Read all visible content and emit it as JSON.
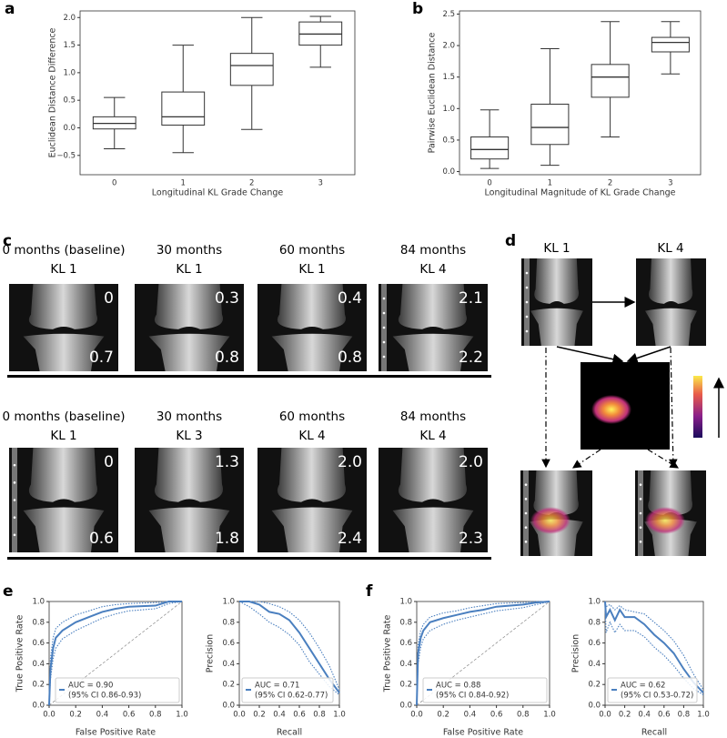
{
  "panel_labels": [
    "a",
    "b",
    "c",
    "d",
    "e",
    "f"
  ],
  "chart_data": [
    {
      "type": "box",
      "xlabel": "Longitudinal KL Grade Change",
      "ylabel": "Euclidean Distance Difference",
      "categories": [
        "0",
        "1",
        "2",
        "3"
      ],
      "boxes": [
        {
          "whislo": -0.38,
          "q1": -0.02,
          "med": 0.08,
          "q3": 0.2,
          "whishi": 0.55
        },
        {
          "whislo": -0.45,
          "q1": 0.05,
          "med": 0.2,
          "q3": 0.65,
          "whishi": 1.5
        },
        {
          "whislo": -0.03,
          "q1": 0.77,
          "med": 1.13,
          "q3": 1.35,
          "whishi": 2.0
        },
        {
          "whislo": 1.1,
          "q1": 1.5,
          "med": 1.7,
          "q3": 1.92,
          "whishi": 2.02
        }
      ],
      "ylim": [
        -0.85,
        2.12
      ],
      "yticks": [
        {
          "value": -0.5,
          "label": "−0.5"
        },
        {
          "value": 0,
          "label": "0.0"
        },
        {
          "value": 0.5,
          "label": "0.5"
        },
        {
          "value": 1,
          "label": "1.0"
        },
        {
          "value": 1.5,
          "label": "1.5"
        },
        {
          "value": 2,
          "label": "2.0"
        }
      ],
      "color": "#333333"
    },
    {
      "type": "box",
      "xlabel": "Longitudinal Magnitude of KL Grade Change",
      "ylabel": "Pairwise Euclidean Distance",
      "categories": [
        "0",
        "1",
        "2",
        "3"
      ],
      "boxes": [
        {
          "whislo": 0.05,
          "q1": 0.2,
          "med": 0.35,
          "q3": 0.55,
          "whishi": 0.98
        },
        {
          "whislo": 0.1,
          "q1": 0.43,
          "med": 0.7,
          "q3": 1.07,
          "whishi": 1.95
        },
        {
          "whislo": 0.55,
          "q1": 1.18,
          "med": 1.5,
          "q3": 1.7,
          "whishi": 2.38
        },
        {
          "whislo": 1.55,
          "q1": 1.9,
          "med": 2.05,
          "q3": 2.13,
          "whishi": 2.38
        }
      ],
      "ylim": [
        -0.05,
        2.55
      ],
      "yticks": [
        {
          "value": 0,
          "label": "0.0"
        },
        {
          "value": 0.5,
          "label": "0.5"
        },
        {
          "value": 1,
          "label": "1.0"
        },
        {
          "value": 1.5,
          "label": "1.5"
        },
        {
          "value": 2,
          "label": "2.0"
        },
        {
          "value": 2.5,
          "label": "2.5"
        }
      ],
      "color": "#333333"
    },
    {
      "type": "line",
      "xlabel": "False Positive Rate",
      "ylabel": "True Positive Rate",
      "diagonal": true,
      "legend": "lower right",
      "legend_text": [
        "AUC = 0.90",
        "(95% CI 0.86-0.93)"
      ],
      "xlim": [
        0,
        1
      ],
      "ylim": [
        0,
        1
      ],
      "xticks": [
        {
          "value": 0,
          "label": "0.0"
        },
        {
          "value": 0.2,
          "label": "0.2"
        },
        {
          "value": 0.4,
          "label": "0.4"
        },
        {
          "value": 0.6,
          "label": "0.6"
        },
        {
          "value": 0.8,
          "label": "0.8"
        },
        {
          "value": 1,
          "label": "1.0"
        }
      ],
      "yticks": [
        {
          "value": 0,
          "label": "0.0"
        },
        {
          "value": 0.2,
          "label": "0.2"
        },
        {
          "value": 0.4,
          "label": "0.4"
        },
        {
          "value": 0.6,
          "label": "0.6"
        },
        {
          "value": 0.8,
          "label": "0.8"
        },
        {
          "value": 1,
          "label": "1.0"
        }
      ],
      "series": [
        {
          "color": "#4a7fbf",
          "style": "solid",
          "x": [
            0,
            0.01,
            0.03,
            0.05,
            0.1,
            0.2,
            0.3,
            0.4,
            0.5,
            0.6,
            0.8,
            0.9,
            1
          ],
          "values": [
            0,
            0.35,
            0.55,
            0.65,
            0.72,
            0.8,
            0.85,
            0.9,
            0.93,
            0.95,
            0.96,
            1,
            1
          ]
        },
        {
          "color": "#4a7fbf",
          "style": "dotted",
          "x": [
            0,
            0.01,
            0.03,
            0.05,
            0.1,
            0.2,
            0.3,
            0.4,
            0.5,
            0.6,
            0.8,
            0.9,
            1
          ],
          "values": [
            0,
            0.45,
            0.65,
            0.74,
            0.8,
            0.87,
            0.91,
            0.95,
            0.97,
            0.98,
            0.99,
            1,
            1
          ]
        },
        {
          "color": "#4a7fbf",
          "style": "dotted",
          "x": [
            0,
            0.01,
            0.03,
            0.05,
            0.1,
            0.2,
            0.3,
            0.4,
            0.5,
            0.6,
            0.8,
            0.9,
            1
          ],
          "values": [
            0,
            0.25,
            0.45,
            0.55,
            0.64,
            0.72,
            0.78,
            0.84,
            0.88,
            0.91,
            0.93,
            0.98,
            1
          ]
        }
      ]
    },
    {
      "type": "line",
      "xlabel": "Recall",
      "ylabel": "Precision",
      "diagonal": false,
      "legend": "lower left",
      "legend_text": [
        "AUC = 0.71",
        "(95% CI 0.62-0.77)"
      ],
      "xlim": [
        0,
        1
      ],
      "ylim": [
        0,
        1
      ],
      "xticks": [
        {
          "value": 0,
          "label": "0.0"
        },
        {
          "value": 0.2,
          "label": "0.2"
        },
        {
          "value": 0.4,
          "label": "0.4"
        },
        {
          "value": 0.6,
          "label": "0.6"
        },
        {
          "value": 0.8,
          "label": "0.8"
        },
        {
          "value": 1,
          "label": "1.0"
        }
      ],
      "yticks": [
        {
          "value": 0,
          "label": "0.0"
        },
        {
          "value": 0.2,
          "label": "0.2"
        },
        {
          "value": 0.4,
          "label": "0.4"
        },
        {
          "value": 0.6,
          "label": "0.6"
        },
        {
          "value": 0.8,
          "label": "0.8"
        },
        {
          "value": 1,
          "label": "1.0"
        }
      ],
      "series": [
        {
          "color": "#4a7fbf",
          "style": "solid",
          "x": [
            0,
            0.1,
            0.2,
            0.3,
            0.4,
            0.5,
            0.6,
            0.7,
            0.8,
            0.9,
            1
          ],
          "values": [
            1,
            1,
            0.97,
            0.9,
            0.88,
            0.82,
            0.7,
            0.55,
            0.4,
            0.25,
            0.12
          ]
        },
        {
          "color": "#4a7fbf",
          "style": "dotted",
          "x": [
            0,
            0.1,
            0.2,
            0.3,
            0.4,
            0.5,
            0.6,
            0.7,
            0.8,
            0.9,
            1
          ],
          "values": [
            1,
            1,
            1,
            0.98,
            0.95,
            0.9,
            0.82,
            0.7,
            0.55,
            0.38,
            0.15
          ]
        },
        {
          "color": "#4a7fbf",
          "style": "dotted",
          "x": [
            0,
            0.1,
            0.2,
            0.3,
            0.4,
            0.5,
            0.6,
            0.7,
            0.8,
            0.9,
            1
          ],
          "values": [
            1,
            0.95,
            0.88,
            0.8,
            0.75,
            0.68,
            0.58,
            0.42,
            0.3,
            0.18,
            0.1
          ]
        }
      ]
    },
    {
      "type": "line",
      "xlabel": "False Positive Rate",
      "ylabel": "True Positive Rate",
      "diagonal": true,
      "legend": "lower right",
      "legend_text": [
        "AUC = 0.88",
        "(95% CI 0.84-0.92)"
      ],
      "xlim": [
        0,
        1
      ],
      "ylim": [
        0,
        1
      ],
      "xticks": [
        {
          "value": 0,
          "label": "0.0"
        },
        {
          "value": 0.2,
          "label": "0.2"
        },
        {
          "value": 0.4,
          "label": "0.4"
        },
        {
          "value": 0.6,
          "label": "0.6"
        },
        {
          "value": 0.8,
          "label": "0.8"
        },
        {
          "value": 1,
          "label": "1.0"
        }
      ],
      "yticks": [
        {
          "value": 0,
          "label": "0.0"
        },
        {
          "value": 0.2,
          "label": "0.2"
        },
        {
          "value": 0.4,
          "label": "0.4"
        },
        {
          "value": 0.6,
          "label": "0.6"
        },
        {
          "value": 0.8,
          "label": "0.8"
        },
        {
          "value": 1,
          "label": "1.0"
        }
      ],
      "series": [
        {
          "color": "#4a7fbf",
          "style": "solid",
          "x": [
            0,
            0.01,
            0.03,
            0.05,
            0.1,
            0.2,
            0.3,
            0.4,
            0.5,
            0.6,
            0.8,
            0.9,
            1
          ],
          "values": [
            0,
            0.5,
            0.65,
            0.72,
            0.8,
            0.84,
            0.87,
            0.9,
            0.92,
            0.95,
            0.97,
            0.99,
            1
          ]
        },
        {
          "color": "#4a7fbf",
          "style": "dotted",
          "x": [
            0,
            0.01,
            0.03,
            0.05,
            0.1,
            0.2,
            0.3,
            0.4,
            0.5,
            0.6,
            0.8,
            0.9,
            1
          ],
          "values": [
            0,
            0.58,
            0.72,
            0.78,
            0.85,
            0.89,
            0.91,
            0.94,
            0.96,
            0.98,
            0.99,
            1,
            1
          ]
        },
        {
          "color": "#4a7fbf",
          "style": "dotted",
          "x": [
            0,
            0.01,
            0.03,
            0.05,
            0.1,
            0.2,
            0.3,
            0.4,
            0.5,
            0.6,
            0.8,
            0.9,
            1
          ],
          "values": [
            0,
            0.4,
            0.56,
            0.64,
            0.72,
            0.78,
            0.82,
            0.85,
            0.88,
            0.91,
            0.94,
            0.97,
            1
          ]
        }
      ]
    },
    {
      "type": "line",
      "xlabel": "Recall",
      "ylabel": "Precision",
      "diagonal": false,
      "legend": "lower left",
      "legend_text": [
        "AUC = 0.62",
        "(95% CI 0.53-0.72)"
      ],
      "xlim": [
        0,
        1
      ],
      "ylim": [
        0,
        1
      ],
      "xticks": [
        {
          "value": 0,
          "label": "0.0"
        },
        {
          "value": 0.2,
          "label": "0.2"
        },
        {
          "value": 0.4,
          "label": "0.4"
        },
        {
          "value": 0.6,
          "label": "0.6"
        },
        {
          "value": 0.8,
          "label": "0.8"
        },
        {
          "value": 1,
          "label": "1.0"
        }
      ],
      "yticks": [
        {
          "value": 0,
          "label": "0.0"
        },
        {
          "value": 0.2,
          "label": "0.2"
        },
        {
          "value": 0.4,
          "label": "0.4"
        },
        {
          "value": 0.6,
          "label": "0.6"
        },
        {
          "value": 0.8,
          "label": "0.8"
        },
        {
          "value": 1,
          "label": "1.0"
        }
      ],
      "series": [
        {
          "color": "#4a7fbf",
          "style": "solid",
          "x": [
            0,
            0.01,
            0.05,
            0.1,
            0.15,
            0.2,
            0.3,
            0.4,
            0.5,
            0.6,
            0.7,
            0.8,
            0.9,
            1
          ],
          "values": [
            1,
            0.85,
            0.92,
            0.82,
            0.92,
            0.85,
            0.85,
            0.78,
            0.68,
            0.6,
            0.5,
            0.35,
            0.22,
            0.12
          ]
        },
        {
          "color": "#4a7fbf",
          "style": "dotted",
          "x": [
            0,
            0.01,
            0.05,
            0.1,
            0.15,
            0.2,
            0.3,
            0.4,
            0.5,
            0.6,
            0.7,
            0.8,
            0.9,
            1
          ],
          "values": [
            1,
            0.95,
            0.97,
            0.92,
            0.96,
            0.92,
            0.9,
            0.88,
            0.8,
            0.72,
            0.62,
            0.48,
            0.3,
            0.15
          ]
        },
        {
          "color": "#4a7fbf",
          "style": "dotted",
          "x": [
            0,
            0.01,
            0.05,
            0.1,
            0.15,
            0.2,
            0.3,
            0.4,
            0.5,
            0.6,
            0.7,
            0.8,
            0.9,
            1
          ],
          "values": [
            1,
            0.7,
            0.8,
            0.7,
            0.78,
            0.72,
            0.72,
            0.66,
            0.56,
            0.48,
            0.38,
            0.26,
            0.16,
            0.1
          ]
        }
      ]
    }
  ],
  "panel_c": {
    "rows": [
      [
        {
          "time": "0 months (baseline)",
          "grade": "KL 1",
          "top": "0",
          "bottom": "0.7"
        },
        {
          "time": "30 months",
          "grade": "KL 1",
          "top": "0.3",
          "bottom": "0.8"
        },
        {
          "time": "60 months",
          "grade": "KL 1",
          "top": "0.4",
          "bottom": "0.8"
        },
        {
          "time": "84 months",
          "grade": "KL 4",
          "top": "2.1",
          "bottom": "2.2"
        }
      ],
      [
        {
          "time": "0 months (baseline)",
          "grade": "KL 1",
          "top": "0",
          "bottom": "0.6"
        },
        {
          "time": "30 months",
          "grade": "KL 3",
          "top": "1.3",
          "bottom": "1.8"
        },
        {
          "time": "60 months",
          "grade": "KL 4",
          "top": "2.0",
          "bottom": "2.4"
        },
        {
          "time": "84 months",
          "grade": "KL 4",
          "top": "2.0",
          "bottom": "2.3"
        }
      ]
    ]
  },
  "panel_d": {
    "labels": [
      "KL 1",
      "KL 4"
    ]
  }
}
